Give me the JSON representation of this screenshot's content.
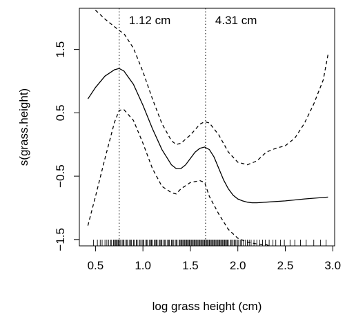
{
  "chart_data": {
    "type": "line",
    "xlabel": "log grass height (cm)",
    "ylabel": "s(grass.height)",
    "xlim": [
      0.33,
      3.02
    ],
    "ylim": [
      -1.6,
      2.15
    ],
    "x_ticks": [
      0.5,
      1.0,
      1.5,
      2.0,
      2.5,
      3.0
    ],
    "x_tick_labels": [
      "0.5",
      "1.0",
      "1.5",
      "2.0",
      "2.5",
      "3.0"
    ],
    "y_ticks": [
      -1.5,
      -0.5,
      0.5,
      1.5
    ],
    "y_tick_labels": [
      "−1.5",
      "−0.5",
      "0.5",
      "1.5"
    ],
    "grid": false,
    "vlines": [
      {
        "x": 0.75,
        "label": "1.12 cm"
      },
      {
        "x": 1.66,
        "label": "4.31 cm"
      }
    ],
    "series": [
      {
        "style": "solid",
        "x": [
          0.42,
          0.5,
          0.6,
          0.7,
          0.75,
          0.8,
          0.9,
          1.0,
          1.1,
          1.2,
          1.3,
          1.35,
          1.4,
          1.45,
          1.5,
          1.55,
          1.6,
          1.65,
          1.7,
          1.75,
          1.8,
          1.85,
          1.9,
          1.95,
          2.0,
          2.05,
          2.1,
          2.15,
          2.2,
          2.3,
          2.5,
          2.7,
          2.95
        ],
        "y": [
          0.72,
          0.9,
          1.08,
          1.18,
          1.2,
          1.16,
          0.95,
          0.62,
          0.25,
          -0.08,
          -0.32,
          -0.38,
          -0.38,
          -0.32,
          -0.22,
          -0.12,
          -0.06,
          -0.04,
          -0.08,
          -0.2,
          -0.38,
          -0.56,
          -0.7,
          -0.8,
          -0.86,
          -0.89,
          -0.91,
          -0.92,
          -0.92,
          -0.91,
          -0.89,
          -0.86,
          -0.83
        ]
      },
      {
        "style": "dashed",
        "x": [
          0.5,
          0.6,
          0.7,
          0.75,
          0.8,
          0.9,
          1.0,
          1.1,
          1.2,
          1.3,
          1.35,
          1.4,
          1.5,
          1.6,
          1.65,
          1.7,
          1.8,
          1.9,
          2.0,
          2.1,
          2.2,
          2.3,
          2.4,
          2.5,
          2.6,
          2.7,
          2.8,
          2.9,
          2.95
        ],
        "y": [
          2.12,
          1.98,
          1.86,
          1.8,
          1.75,
          1.52,
          1.15,
          0.72,
          0.33,
          0.06,
          0.0,
          0.02,
          0.15,
          0.32,
          0.36,
          0.34,
          0.15,
          -0.12,
          -0.28,
          -0.32,
          -0.26,
          -0.12,
          -0.06,
          -0.02,
          0.1,
          0.33,
          0.64,
          1.02,
          1.42
        ]
      },
      {
        "style": "dashed",
        "x": [
          0.42,
          0.5,
          0.6,
          0.7,
          0.75,
          0.8,
          0.9,
          1.0,
          1.1,
          1.2,
          1.3,
          1.35,
          1.4,
          1.5,
          1.6,
          1.65,
          1.7,
          1.8,
          1.9,
          2.0,
          2.1,
          2.2,
          2.3,
          2.33
        ],
        "y": [
          -1.28,
          -0.82,
          -0.22,
          0.35,
          0.54,
          0.55,
          0.38,
          0.02,
          -0.38,
          -0.66,
          -0.76,
          -0.78,
          -0.7,
          -0.6,
          -0.57,
          -0.6,
          -0.82,
          -1.1,
          -1.34,
          -1.48,
          -1.54,
          -1.57,
          -1.58,
          -1.6
        ]
      }
    ],
    "rug": [
      0.48,
      0.52,
      0.55,
      0.57,
      0.6,
      0.62,
      0.64,
      0.66,
      0.67,
      0.69,
      0.7,
      0.71,
      0.72,
      0.73,
      0.74,
      0.75,
      0.76,
      0.78,
      0.79,
      0.8,
      0.82,
      0.83,
      0.84,
      0.86,
      0.87,
      0.88,
      0.9,
      0.91,
      0.93,
      0.94,
      0.96,
      0.97,
      0.99,
      1.0,
      1.01,
      1.03,
      1.04,
      1.05,
      1.07,
      1.08,
      1.09,
      1.1,
      1.12,
      1.13,
      1.14,
      1.15,
      1.17,
      1.18,
      1.19,
      1.2,
      1.22,
      1.23,
      1.24,
      1.26,
      1.27,
      1.28,
      1.3,
      1.31,
      1.32,
      1.34,
      1.35,
      1.36,
      1.38,
      1.39,
      1.4,
      1.41,
      1.42,
      1.43,
      1.44,
      1.45,
      1.46,
      1.47,
      1.48,
      1.49,
      1.5,
      1.51,
      1.52,
      1.53,
      1.54,
      1.55,
      1.56,
      1.57,
      1.58,
      1.59,
      1.6,
      1.61,
      1.62,
      1.63,
      1.64,
      1.65,
      1.66,
      1.67,
      1.68,
      1.69,
      1.7,
      1.71,
      1.72,
      1.73,
      1.74,
      1.75,
      1.76,
      1.77,
      1.78,
      1.79,
      1.8,
      1.81,
      1.82,
      1.83,
      1.84,
      1.85,
      1.86,
      1.87,
      1.88,
      1.89,
      1.9,
      1.92,
      1.93,
      1.94,
      1.96,
      1.97,
      1.98,
      2.0,
      2.01,
      2.03,
      2.04,
      2.06,
      2.08,
      2.1,
      2.12,
      2.14,
      2.17,
      2.2,
      2.23,
      2.26,
      2.29,
      2.33,
      2.37,
      2.4,
      2.45,
      2.49,
      2.55,
      2.6,
      2.66,
      2.72,
      2.8,
      2.87,
      2.93
    ]
  }
}
